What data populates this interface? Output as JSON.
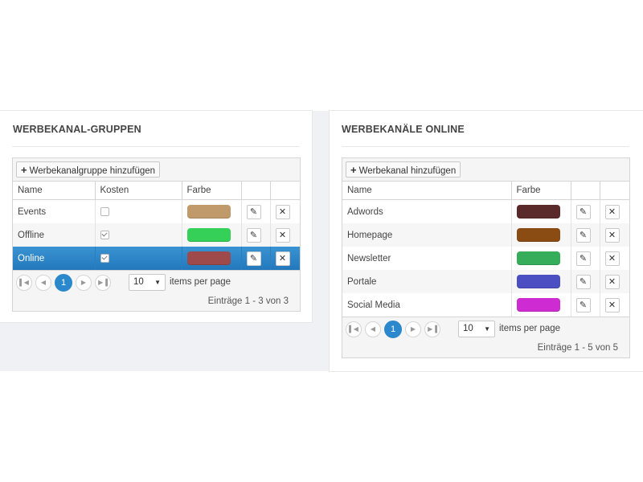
{
  "left": {
    "title": "WERBEKANAL-GRUPPEN",
    "add_label": "Werbekanalgruppe hinzufügen",
    "columns": [
      "Name",
      "Kosten",
      "Farbe",
      "",
      ""
    ],
    "rows": [
      {
        "name": "Events",
        "kosten": false,
        "color": "#c19a6b",
        "selected": false
      },
      {
        "name": "Offline",
        "kosten": true,
        "color": "#34d058",
        "selected": false
      },
      {
        "name": "Online",
        "kosten": true,
        "color": "#9e4a4a",
        "selected": true
      }
    ],
    "pager": {
      "current": "1",
      "per_page": "10",
      "per_page_label": "items per page",
      "info": "Einträge 1 - 3 von 3"
    }
  },
  "right": {
    "title": "WERBEKANÄLE ONLINE",
    "add_label": "Werbekanal hinzufügen",
    "columns": [
      "Name",
      "Farbe",
      "",
      ""
    ],
    "rows": [
      {
        "name": "Adwords",
        "color": "#5a2a2a"
      },
      {
        "name": "Homepage",
        "color": "#8b4c13"
      },
      {
        "name": "Newsletter",
        "color": "#36ad5a"
      },
      {
        "name": "Portale",
        "color": "#4b4fc2"
      },
      {
        "name": "Social Media",
        "color": "#cf2bd2"
      }
    ],
    "pager": {
      "current": "1",
      "per_page": "10",
      "per_page_label": "items per page",
      "info": "Einträge 1 - 5 von 5"
    }
  },
  "icons": {
    "edit": "pencil-icon",
    "delete": "close-icon",
    "first": "first-page-icon",
    "prev": "prev-page-icon",
    "next": "next-page-icon",
    "last": "last-page-icon",
    "add": "plus-icon",
    "dropdown": "caret-down-icon"
  }
}
